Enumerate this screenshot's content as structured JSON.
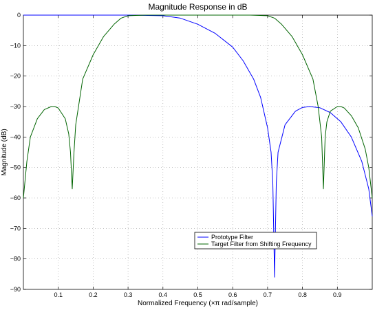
{
  "chart_data": {
    "type": "line",
    "title": "Magnitude Response in dB",
    "xlabel": "Normalized Frequency  (×π rad/sample)",
    "ylabel": "Magnitude (dB)",
    "xlim": [
      0,
      1
    ],
    "ylim": [
      -90,
      0
    ],
    "xticks": [
      0.1,
      0.2,
      0.3,
      0.4,
      0.5,
      0.6,
      0.7,
      0.8,
      0.9
    ],
    "xtick_labels": [
      "0.1",
      "0.2",
      "0.3",
      "0.4",
      "0.5",
      "0.6",
      "0.7",
      "0.8",
      "0.9"
    ],
    "yticks": [
      0,
      -10,
      -20,
      -30,
      -40,
      -50,
      -60,
      -70,
      -80,
      -90
    ],
    "ytick_labels": [
      "0",
      "−10",
      "−20",
      "−30",
      "−40",
      "−50",
      "−60",
      "−70",
      "−80",
      "−90"
    ],
    "grid": true,
    "legend_position": "lower-center-right",
    "series": [
      {
        "name": "Prototype Filter",
        "color": "#0000ff",
        "x": [
          0,
          0.1,
          0.2,
          0.3,
          0.4,
          0.45,
          0.5,
          0.55,
          0.6,
          0.63,
          0.66,
          0.68,
          0.7,
          0.71,
          0.715,
          0.72,
          0.725,
          0.73,
          0.75,
          0.78,
          0.8,
          0.82,
          0.85,
          0.88,
          0.91,
          0.94,
          0.97,
          0.99,
          1.0
        ],
        "y": [
          0,
          0,
          0,
          0,
          -0.2,
          -1,
          -3,
          -6,
          -10.5,
          -15,
          -21,
          -27,
          -37,
          -45,
          -55,
          -86,
          -55,
          -45,
          -36,
          -31.5,
          -30.3,
          -30,
          -30.4,
          -32,
          -35,
          -40,
          -48,
          -57,
          -66
        ]
      },
      {
        "name": "Target Filter from Shifting Frequency",
        "color": "#006400",
        "x": [
          0,
          0.01,
          0.02,
          0.04,
          0.06,
          0.08,
          0.09,
          0.1,
          0.12,
          0.13,
          0.135,
          0.14,
          0.145,
          0.15,
          0.17,
          0.2,
          0.23,
          0.26,
          0.28,
          0.3,
          0.35,
          0.4,
          0.5,
          0.6,
          0.65,
          0.7,
          0.72,
          0.74,
          0.77,
          0.8,
          0.83,
          0.845,
          0.855,
          0.86,
          0.865,
          0.87,
          0.88,
          0.9,
          0.91,
          0.92,
          0.94,
          0.96,
          0.98,
          0.99,
          1.0
        ],
        "y": [
          -60,
          -48,
          -40,
          -34,
          -31,
          -30,
          -30,
          -30.5,
          -34,
          -39,
          -45,
          -57,
          -45,
          -36,
          -21,
          -13,
          -7,
          -3,
          -1,
          -0.2,
          0,
          0,
          0,
          0,
          0,
          -0.2,
          -1,
          -3,
          -7,
          -13,
          -21,
          -30,
          -40,
          -57,
          -40,
          -35,
          -31.5,
          -30,
          -30,
          -30.5,
          -33,
          -37,
          -44,
          -50,
          -60
        ]
      }
    ]
  }
}
